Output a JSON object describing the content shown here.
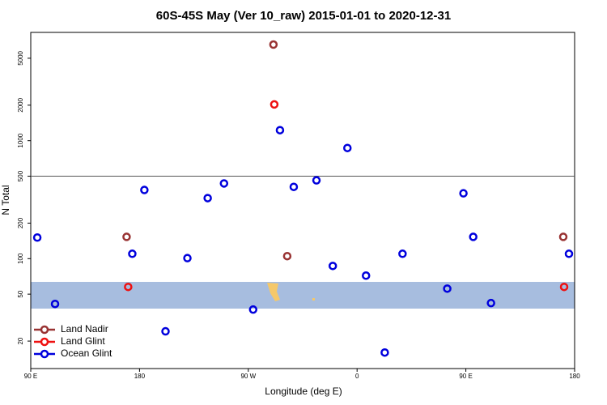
{
  "chart_data": {
    "type": "scatter",
    "title": "60S-45S May (Ver 10_raw)   2015-01-01 to 2020-12-31",
    "x_label": "Longitude (deg E)",
    "y_label": "N Total",
    "log_y": true,
    "xlim": [
      90,
      540
    ],
    "ylim": [
      11.7,
      8280
    ],
    "xticks": [
      {
        "value": 90,
        "label": "90 E"
      },
      180,
      {
        "value": 270,
        "label": "90 W"
      },
      {
        "value": 360,
        "label": "0"
      },
      {
        "value": 450,
        "label": "90 E"
      },
      {
        "value": 540,
        "label": "180"
      }
    ],
    "yticks": [
      20,
      50,
      100,
      200,
      500,
      1000,
      2000,
      5000
    ],
    "hline": 500,
    "legend": "bottom-left",
    "series": [
      {
        "name": "Land Nadir",
        "color": "#993333",
        "x": [
          290.8,
          169.3,
          302.2,
          530.6
        ],
        "values": [
          6530,
          153,
          105,
          153
        ]
      },
      {
        "name": "Land Glint",
        "color": "#ee1111",
        "x": [
          291.5,
          170.6,
          531.3
        ],
        "values": [
          2030,
          57.6,
          57.6
        ]
      },
      {
        "name": "Ocean Glint",
        "color": "#0000dd",
        "x": [
          95.4,
          110.1,
          174,
          184,
          201.5,
          219.6,
          236.4,
          249.9,
          274,
          296.2,
          307.6,
          326.4,
          339.9,
          352,
          367.4,
          382.9,
          397.6,
          434.6,
          448,
          456.1,
          470.8,
          535.3
        ],
        "values": [
          151,
          41.3,
          110,
          382,
          24.2,
          101,
          326,
          434,
          37,
          1228,
          406,
          461,
          86.7,
          867,
          71.8,
          16,
          110,
          55.7,
          358,
          153,
          42,
          110
        ]
      }
    ]
  }
}
